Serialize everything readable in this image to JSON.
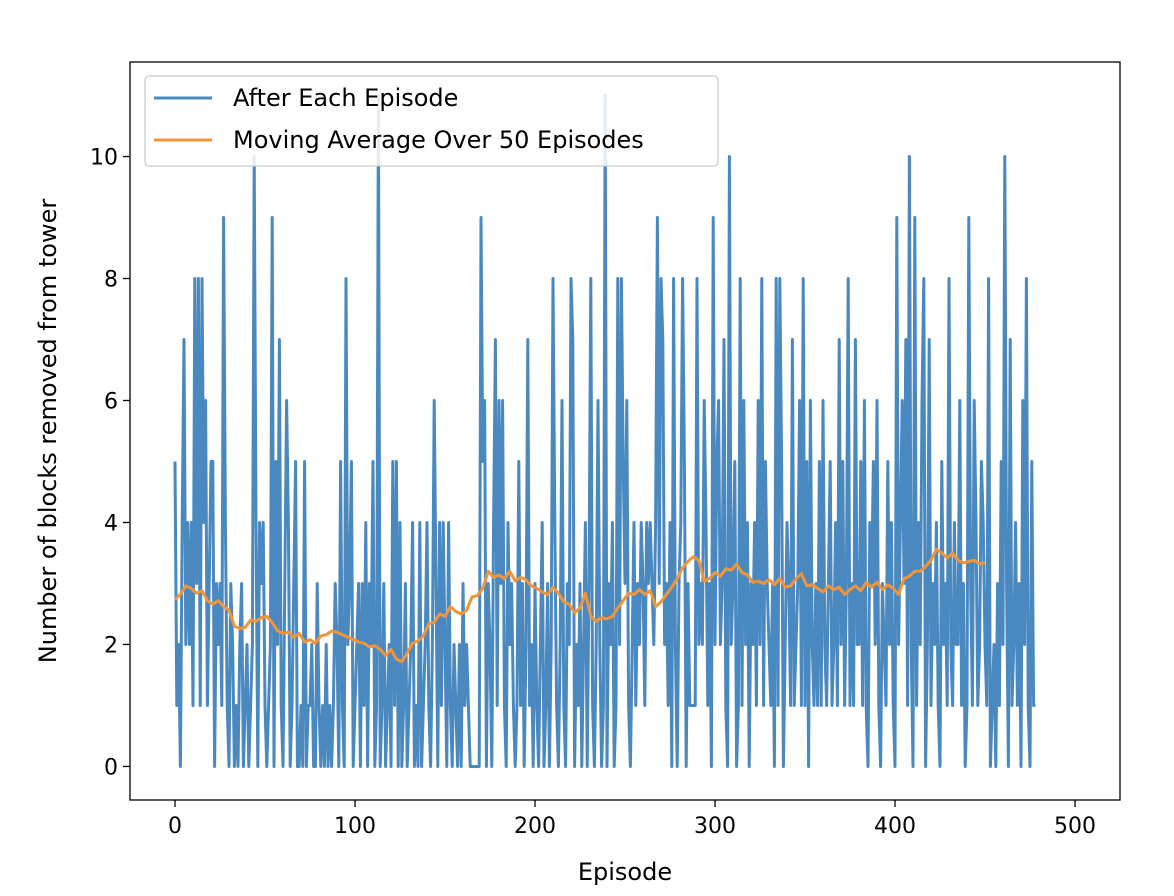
{
  "chart_data": {
    "type": "line",
    "xlabel": "Episode",
    "ylabel": "Number of blocks removed from tower",
    "xlim": [
      -25,
      525
    ],
    "ylim": [
      -0.55,
      11.55
    ],
    "xticks": [
      0,
      100,
      200,
      300,
      400,
      500
    ],
    "yticks": [
      0,
      2,
      4,
      6,
      8,
      10
    ],
    "legend_position": "top-left",
    "series": [
      {
        "name": "After Each Episode",
        "color": "#4a89bf",
        "x_start": 0,
        "x_step": 1,
        "values": [
          5,
          1,
          2,
          0,
          4,
          7,
          2,
          4,
          2,
          4,
          1,
          8,
          3,
          8,
          1,
          8,
          4,
          6,
          1,
          3,
          5,
          5,
          0,
          3,
          2,
          3,
          1,
          9,
          4,
          1,
          0,
          3,
          2,
          0,
          1,
          0,
          2,
          3,
          0,
          1,
          2,
          0,
          1,
          2,
          10,
          4,
          0,
          4,
          3,
          4,
          1,
          0,
          1,
          2,
          9,
          0,
          5,
          2,
          7,
          1,
          0,
          3,
          6,
          4,
          0,
          1,
          3,
          5,
          0,
          0,
          1,
          0,
          5,
          0,
          1,
          1,
          2,
          0,
          0,
          3,
          1,
          0,
          1,
          0,
          2,
          0,
          1,
          0,
          1,
          3,
          2,
          0,
          5,
          1,
          0,
          8,
          2,
          3,
          5,
          0,
          1,
          2,
          3,
          0,
          3,
          1,
          4,
          0,
          3,
          2,
          5,
          0,
          1,
          11,
          0,
          1,
          3,
          0,
          1,
          2,
          0,
          5,
          1,
          5,
          0,
          4,
          0,
          1,
          3,
          0,
          1,
          2,
          4,
          0,
          1,
          0,
          4,
          0,
          1,
          2,
          4,
          1,
          0,
          2,
          6,
          3,
          0,
          4,
          1,
          4,
          2,
          0,
          4,
          1,
          0,
          2,
          1,
          0,
          2,
          0,
          3,
          1,
          2,
          1,
          0,
          0,
          0,
          0,
          0,
          0,
          9,
          5,
          6,
          0,
          3,
          2,
          0,
          4,
          7,
          1,
          6,
          3,
          6,
          1,
          0,
          4,
          2,
          3,
          1,
          0,
          1,
          5,
          1,
          3,
          0,
          2,
          7,
          1,
          2,
          0,
          3,
          1,
          0,
          2,
          4,
          0,
          1,
          3,
          0,
          2,
          8,
          4,
          1,
          0,
          2,
          6,
          1,
          0,
          3,
          2,
          8,
          7,
          0,
          2,
          1,
          3,
          0,
          2,
          4,
          0,
          3,
          8,
          1,
          0,
          2,
          6,
          2,
          0,
          1,
          11,
          0,
          3,
          2,
          4,
          0,
          1,
          8,
          2,
          8,
          5,
          3,
          6,
          1,
          0,
          2,
          4,
          1,
          3,
          2,
          4,
          3,
          1,
          4,
          3,
          4,
          3,
          2,
          4,
          9,
          3,
          8,
          7,
          2,
          3,
          1,
          4,
          0,
          8,
          2,
          0,
          3,
          4,
          8,
          5,
          0,
          3,
          1,
          1,
          1,
          1,
          8,
          2,
          3,
          2,
          6,
          4,
          1,
          3,
          0,
          9,
          2,
          5,
          6,
          2,
          3,
          7,
          1,
          0,
          10,
          2,
          3,
          5,
          0,
          1,
          8,
          1,
          6,
          2,
          4,
          0,
          3,
          2,
          4,
          1,
          6,
          2,
          8,
          1,
          5,
          3,
          2,
          1,
          3,
          0,
          8,
          1,
          8,
          5,
          0,
          2,
          4,
          3,
          1,
          7,
          1,
          2,
          3,
          6,
          1,
          8,
          1,
          5,
          0,
          6,
          2,
          1,
          3,
          1,
          5,
          1,
          6,
          2,
          1,
          3,
          5,
          1,
          2,
          4,
          1,
          7,
          2,
          5,
          1,
          3,
          8,
          1,
          3,
          1,
          7,
          2,
          2,
          5,
          1,
          6,
          1,
          0,
          4,
          3,
          5,
          2,
          6,
          1,
          0,
          3,
          2,
          1,
          5,
          2,
          4,
          1,
          0,
          9,
          2,
          4,
          6,
          3,
          7,
          1,
          10,
          2,
          0,
          9,
          1,
          4,
          2,
          6,
          8,
          0,
          2,
          7,
          1,
          3,
          2,
          4,
          1,
          0,
          5,
          2,
          3,
          1,
          8,
          2,
          1,
          4,
          2,
          2,
          6,
          1,
          3,
          0,
          1,
          9,
          3,
          1,
          6,
          4,
          1,
          2,
          5,
          4,
          2,
          1,
          8,
          0,
          1,
          2,
          0,
          3,
          1,
          5,
          2,
          10,
          3,
          0,
          7,
          1,
          2,
          4,
          1,
          3,
          0,
          6,
          2,
          8,
          1,
          0,
          5,
          1,
          1
        ]
      },
      {
        "name": "Moving Average Over 50 Episodes",
        "color": "#f2953a",
        "x": [
          0,
          3,
          6,
          9,
          12,
          15,
          18,
          21,
          24,
          27,
          30,
          33,
          36,
          39,
          42,
          45,
          48,
          51,
          54,
          57,
          60,
          63,
          66,
          69,
          72,
          75,
          78,
          81,
          84,
          87,
          90,
          93,
          96,
          99,
          102,
          105,
          108,
          111,
          114,
          117,
          120,
          123,
          126,
          129,
          132,
          135,
          138,
          141,
          144,
          147,
          150,
          153,
          156,
          159,
          162,
          165,
          168,
          171,
          174,
          177,
          180,
          183,
          186,
          189,
          192,
          195,
          198,
          201,
          204,
          207,
          210,
          213,
          216,
          219,
          222,
          225,
          228,
          231,
          234,
          237,
          240,
          243,
          246,
          249,
          252,
          255,
          258,
          261,
          264,
          267,
          270,
          273,
          276,
          279,
          282,
          285,
          288,
          291,
          294,
          297,
          300,
          303,
          306,
          309,
          312,
          315,
          318,
          321,
          324,
          327,
          330,
          333,
          336,
          339,
          342,
          345,
          348,
          351,
          354,
          357,
          360,
          363,
          366,
          369,
          372,
          375,
          378,
          381,
          384,
          387,
          390,
          393,
          396,
          399,
          402,
          405,
          408,
          411,
          414,
          417,
          420,
          423,
          426,
          429,
          432,
          435,
          438,
          441,
          444,
          447,
          450
        ],
        "values": [
          2.74,
          2.82,
          2.96,
          2.92,
          2.84,
          2.88,
          2.72,
          2.66,
          2.72,
          2.62,
          2.56,
          2.3,
          2.26,
          2.28,
          2.4,
          2.38,
          2.44,
          2.46,
          2.36,
          2.22,
          2.18,
          2.2,
          2.12,
          2.18,
          2.04,
          2.08,
          2.02,
          2.14,
          2.16,
          2.22,
          2.2,
          2.16,
          2.12,
          2.08,
          2.04,
          2.02,
          1.96,
          1.98,
          1.92,
          1.82,
          1.92,
          1.76,
          1.72,
          1.86,
          2.02,
          2.06,
          2.14,
          2.34,
          2.36,
          2.5,
          2.46,
          2.62,
          2.54,
          2.5,
          2.56,
          2.78,
          2.8,
          2.92,
          3.2,
          3.1,
          3.14,
          3.08,
          3.2,
          3.04,
          3.1,
          3.06,
          2.96,
          2.92,
          2.86,
          2.82,
          2.94,
          2.84,
          2.7,
          2.66,
          2.52,
          2.6,
          2.84,
          2.46,
          2.38,
          2.44,
          2.42,
          2.46,
          2.6,
          2.72,
          2.84,
          2.82,
          2.9,
          2.82,
          2.88,
          2.62,
          2.7,
          2.82,
          2.94,
          3.08,
          3.26,
          3.36,
          3.44,
          3.38,
          3.04,
          3.08,
          3.18,
          3.12,
          3.24,
          3.22,
          3.32,
          3.18,
          3.14,
          3.02,
          3.04,
          3.0,
          3.06,
          2.98,
          3.08,
          2.94,
          2.96,
          3.08,
          3.16,
          2.96,
          2.98,
          2.92,
          2.86,
          2.96,
          2.9,
          2.94,
          2.82,
          2.9,
          2.96,
          2.88,
          3.02,
          2.94,
          3.02,
          2.9,
          2.98,
          2.92,
          2.82,
          3.08,
          3.12,
          3.2,
          3.2,
          3.28,
          3.38,
          3.56,
          3.5,
          3.42,
          3.5,
          3.38,
          3.34,
          3.36,
          3.38,
          3.32,
          3.34
        ]
      }
    ]
  }
}
